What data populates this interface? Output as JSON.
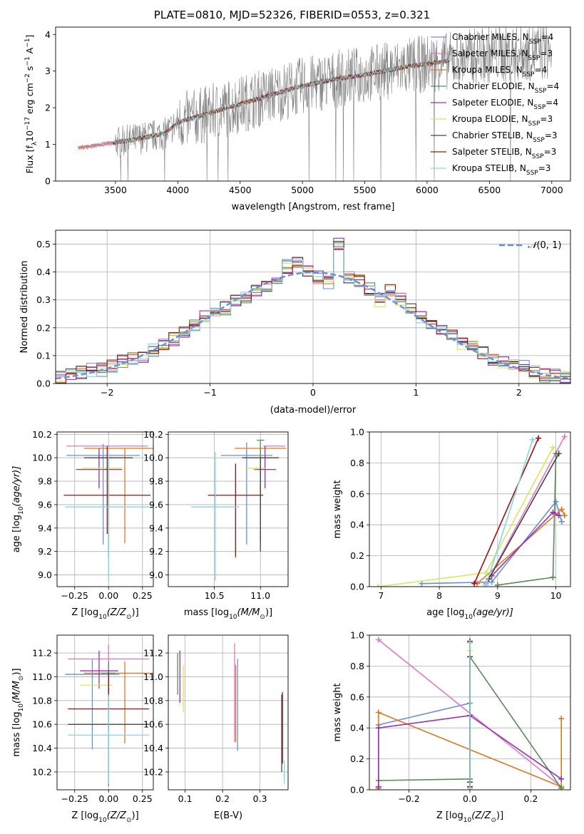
{
  "figure_title": "PLATE=0810, MJD=52326, FIBERID=0553, z=0.321",
  "colors": {
    "Chabrier MILES": "#6a8fdc",
    "Salpeter MILES": "#e377c2",
    "Kroupa MILES": "#e07820",
    "Chabrier ELODIE": "#5a8a5a",
    "Salpeter ELODIE": "#9932b0",
    "Kroupa ELODIE": "#d6e85a",
    "Chabrier STELIB": "#444444",
    "Salpeter STELIB": "#a01010",
    "Kroupa STELIB": "#80d8e0",
    "data": "#808080",
    "gaussian": "#6a8fdc"
  },
  "chart_data": [
    {
      "id": "spectrum",
      "type": "line",
      "xlabel": "wavelength [Angstrom, rest frame]",
      "ylabel_main": "Flux [f",
      "ylabel_sub": "λ",
      "ylabel_rest": "10",
      "ylabel_exp": "−17",
      "ylabel_units": " erg cm",
      "ylabel_units_exp": "−2",
      "ylabel_units2": " s",
      "ylabel_units2_exp": "−1",
      "ylabel_units3": " A",
      "ylabel_units3_exp": "−1",
      "ylabel_end": "]",
      "xlim": [
        3020,
        7150
      ],
      "ylim": [
        0,
        4.2
      ],
      "xticks": [
        "3500",
        "4000",
        "4500",
        "5000",
        "5500",
        "6000",
        "6500",
        "7000"
      ],
      "yticks": [
        "0",
        "1",
        "2",
        "3",
        "4"
      ],
      "legend_placement": "right",
      "legend": [
        {
          "name": "Chabrier MILES",
          "nssp": "4"
        },
        {
          "name": "Salpeter MILES",
          "nssp": "3"
        },
        {
          "name": "Kroupa MILES",
          "nssp": "4"
        },
        {
          "name": "Chabrier ELODIE",
          "nssp": "4"
        },
        {
          "name": "Salpeter ELODIE",
          "nssp": "4"
        },
        {
          "name": "Kroupa ELODIE",
          "nssp": "3"
        },
        {
          "name": "Chabrier STELIB",
          "nssp": "3"
        },
        {
          "name": "Salpeter STELIB",
          "nssp": "3"
        },
        {
          "name": "Kroupa STELIB",
          "nssp": "3"
        }
      ],
      "legend_prefix": "N",
      "legend_sub": "SSP",
      "data_trend": {
        "x": [
          3200,
          3600,
          3900,
          4000,
          4300,
          4500,
          4800,
          5000,
          5300,
          5500,
          5800,
          6000,
          6300,
          6500,
          6800,
          7000
        ],
        "y": [
          0.9,
          1.1,
          1.3,
          1.6,
          1.9,
          2.1,
          2.4,
          2.6,
          2.8,
          2.9,
          3.1,
          3.2,
          3.35,
          3.45,
          3.5,
          3.55
        ]
      }
    },
    {
      "id": "residuals",
      "type": "line",
      "xlabel": "(data-model)/error",
      "ylabel": "Normed distribution",
      "xlim": [
        -2.5,
        2.5
      ],
      "ylim": [
        0,
        0.55
      ],
      "xticks": [
        -2,
        -1,
        0,
        1,
        2
      ],
      "xtick_labels": [
        "−2",
        "−1",
        "0",
        "1",
        "2"
      ],
      "yticks": [
        "0.0",
        "0.1",
        "0.2",
        "0.3",
        "0.4",
        "0.5"
      ],
      "legend_label_pre": "𝒩",
      "legend_label_post": "(0, 1)",
      "legend_placement": "top-right",
      "bins": [
        -2.5,
        -2.4,
        -2.3,
        -2.2,
        -2.1,
        -2.0,
        -1.9,
        -1.8,
        -1.7,
        -1.6,
        -1.5,
        -1.4,
        -1.3,
        -1.2,
        -1.1,
        -1.0,
        -0.9,
        -0.8,
        -0.7,
        -0.6,
        -0.5,
        -0.4,
        -0.3,
        -0.2,
        -0.1,
        0.0,
        0.1,
        0.2,
        0.3,
        0.4,
        0.5,
        0.6,
        0.7,
        0.8,
        0.9,
        1.0,
        1.1,
        1.2,
        1.3,
        1.4,
        1.5,
        1.6,
        1.7,
        1.8,
        1.9,
        2.0,
        2.1,
        2.2,
        2.3,
        2.4,
        2.5
      ],
      "hist_base": [
        0.02,
        0.03,
        0.04,
        0.05,
        0.05,
        0.06,
        0.08,
        0.09,
        0.1,
        0.12,
        0.14,
        0.16,
        0.19,
        0.21,
        0.24,
        0.25,
        0.27,
        0.3,
        0.31,
        0.33,
        0.35,
        0.38,
        0.42,
        0.43,
        0.4,
        0.38,
        0.36,
        0.5,
        0.38,
        0.37,
        0.34,
        0.3,
        0.33,
        0.3,
        0.27,
        0.24,
        0.22,
        0.19,
        0.17,
        0.14,
        0.13,
        0.11,
        0.09,
        0.08,
        0.07,
        0.06,
        0.04,
        0.03,
        0.03,
        0.02
      ]
    },
    {
      "id": "age-vs-Z",
      "type": "scatter",
      "xlabel_pre": "Z [log",
      "xlabel_sub": "10",
      "xlabel_post": "(Z/Z",
      "xlabel_sun": "⊙",
      "xlabel_end": ")]",
      "ylabel_pre": "age  [log",
      "ylabel_sub": "10",
      "ylabel_post": "(age/yr)]",
      "xlim": [
        -0.38,
        0.33
      ],
      "ylim": [
        8.9,
        10.22
      ],
      "xticks": [
        -0.25,
        0,
        0.25
      ],
      "xtick_labels": [
        "−0.25",
        "0.00",
        "0.25"
      ],
      "yticks": [
        9.0,
        9.2,
        9.4,
        9.6,
        9.8,
        10.0,
        10.2
      ],
      "ytick_labels": [
        "9.0",
        "9.2",
        "9.4",
        "9.6",
        "9.8",
        "10.0",
        "10.2"
      ],
      "points": [
        {
          "series": "Chabrier MILES",
          "x": -0.04,
          "y": 10.02,
          "xerr": 0.27,
          "ylo": 9.26,
          "yhi": 10.12
        },
        {
          "series": "Salpeter MILES",
          "x": -0.01,
          "y": 10.1,
          "xerr": 0.3,
          "ylo": 10.1,
          "yhi": 10.1
        },
        {
          "series": "Kroupa MILES",
          "x": 0.12,
          "y": 10.08,
          "xerr": 0.3,
          "ylo": 9.27,
          "yhi": 10.08
        },
        {
          "series": "Chabrier ELODIE",
          "x": 0.0,
          "y": 10.0,
          "xerr": 0.03,
          "ylo": 9.16,
          "yhi": 10.0
        },
        {
          "series": "Salpeter ELODIE",
          "x": -0.07,
          "y": 9.9,
          "xerr": 0.17,
          "ylo": 9.74,
          "yhi": 10.08
        },
        {
          "series": "Kroupa ELODIE",
          "x": -0.05,
          "y": 9.91,
          "xerr": 0.15,
          "ylo": 9.9,
          "yhi": 9.92
        },
        {
          "series": "Chabrier STELIB",
          "x": 0.0,
          "y": 10.0,
          "xerr": 0.18,
          "ylo": 9.15,
          "yhi": 10.0
        },
        {
          "series": "Salpeter STELIB",
          "x": -0.01,
          "y": 9.68,
          "xerr": 0.32,
          "ylo": 9.35,
          "yhi": 10.1
        },
        {
          "series": "Kroupa STELIB",
          "x": 0.0,
          "y": 9.58,
          "xerr": 0.32,
          "ylo": 8.95,
          "yhi": 10.05
        }
      ]
    },
    {
      "id": "age-vs-mass",
      "type": "scatter",
      "xlabel_pre": "mass [log",
      "xlabel_sub": "10",
      "xlabel_post": "(M/M",
      "xlabel_sun": "⊙",
      "xlabel_end": ")]",
      "xlim": [
        10.0,
        11.3
      ],
      "ylim": [
        8.9,
        10.22
      ],
      "xticks": [
        10.5,
        11.0
      ],
      "xtick_labels": [
        "10.5",
        "11.0"
      ],
      "yticks": [
        9.0,
        9.2,
        9.4,
        9.6,
        9.8,
        10.0,
        10.2
      ],
      "ytick_labels": [
        "9.0",
        "9.2",
        "9.4",
        "9.6",
        "9.8",
        "10.0",
        "10.2"
      ],
      "points": [
        {
          "series": "Chabrier MILES",
          "x": 10.85,
          "y": 10.02,
          "xerr": 0.28,
          "ylo": 9.26,
          "yhi": 10.13
        },
        {
          "series": "Salpeter MILES",
          "x": 11.15,
          "y": 10.1,
          "xerr": 0.12,
          "ylo": 10.1,
          "yhi": 10.1
        },
        {
          "series": "Kroupa MILES",
          "x": 11.0,
          "y": 10.08,
          "xerr": 0.28,
          "ylo": 9.27,
          "yhi": 10.08
        },
        {
          "series": "Chabrier ELODIE",
          "x": 11.0,
          "y": 10.15,
          "xerr": 0.04,
          "ylo": 9.3,
          "yhi": 10.15
        },
        {
          "series": "Salpeter ELODIE",
          "x": 11.05,
          "y": 9.9,
          "xerr": 0.12,
          "ylo": 9.74,
          "yhi": 10.1
        },
        {
          "series": "Kroupa ELODIE",
          "x": 10.95,
          "y": 9.91,
          "xerr": 0.1,
          "ylo": 9.9,
          "yhi": 9.92
        },
        {
          "series": "Chabrier STELIB",
          "x": 11.0,
          "y": 10.0,
          "xerr": 0.2,
          "ylo": 9.2,
          "yhi": 10.0
        },
        {
          "series": "Salpeter STELIB",
          "x": 10.73,
          "y": 9.68,
          "xerr": 0.3,
          "ylo": 9.15,
          "yhi": 9.95
        },
        {
          "series": "Kroupa STELIB",
          "x": 10.51,
          "y": 9.58,
          "xerr": 0.26,
          "ylo": 8.95,
          "yhi": 10.05
        }
      ]
    },
    {
      "id": "weight-vs-age",
      "type": "line",
      "xlabel_pre": "age  [log",
      "xlabel_sub": "10",
      "xlabel_post": "(age/yr)]",
      "ylabel": "mass weight",
      "xlim": [
        6.8,
        10.25
      ],
      "ylim": [
        0,
        1.0
      ],
      "xticks": [
        7,
        8,
        9,
        10
      ],
      "xtick_labels": [
        "7",
        "8",
        "9",
        "10"
      ],
      "yticks": [
        0,
        0.2,
        0.4,
        0.6,
        0.8,
        1.0
      ],
      "ytick_labels": [
        "0.0",
        "0.2",
        "0.4",
        "0.6",
        "0.8",
        "1.0"
      ],
      "series": [
        {
          "name": "Chabrier MILES",
          "x": [
            7.7,
            8.9,
            10.0,
            10.1
          ],
          "y": [
            0.02,
            0.03,
            0.55,
            0.42
          ]
        },
        {
          "name": "Salpeter MILES",
          "x": [
            8.8,
            10.15
          ],
          "y": [
            0.02,
            0.97
          ]
        },
        {
          "name": "Kroupa MILES",
          "x": [
            8.65,
            10.1,
            10.15
          ],
          "y": [
            0.02,
            0.5,
            0.46
          ]
        },
        {
          "name": "Chabrier ELODIE",
          "x": [
            9.0,
            9.95,
            10.0
          ],
          "y": [
            0.01,
            0.06,
            0.86
          ]
        },
        {
          "name": "Salpeter ELODIE",
          "x": [
            8.9,
            9.95,
            10.05
          ],
          "y": [
            0.07,
            0.48,
            0.46
          ]
        },
        {
          "name": "Kroupa ELODIE",
          "x": [
            6.95,
            8.8,
            9.95
          ],
          "y": [
            0.0,
            0.09,
            0.9
          ]
        },
        {
          "name": "Chabrier STELIB",
          "x": [
            8.85,
            10.05
          ],
          "y": [
            0.05,
            0.86
          ]
        },
        {
          "name": "Salpeter STELIB",
          "x": [
            8.6,
            9.7
          ],
          "y": [
            0.02,
            0.96
          ]
        },
        {
          "name": "Kroupa STELIB",
          "x": [
            8.8,
            9.6
          ],
          "y": [
            0.01,
            0.95
          ]
        }
      ]
    },
    {
      "id": "mass-vs-Z",
      "type": "scatter",
      "xlabel_pre": "Z [log",
      "xlabel_sub": "10",
      "xlabel_post": "(Z/Z",
      "xlabel_sun": "⊙",
      "xlabel_end": ")]",
      "ylabel_pre": "mass [log",
      "ylabel_sub": "10",
      "ylabel_post": "(M/M",
      "ylabel_sun": "⊙",
      "ylabel_end": ")]",
      "xlim": [
        -0.38,
        0.33
      ],
      "ylim": [
        10.05,
        11.35
      ],
      "xticks": [
        -0.25,
        0,
        0.25
      ],
      "xtick_labels": [
        "−0.25",
        "0.00",
        "0.25"
      ],
      "yticks": [
        10.2,
        10.4,
        10.6,
        10.8,
        11.0,
        11.2
      ],
      "ytick_labels": [
        "10.2",
        "10.4",
        "10.6",
        "10.8",
        "11.0",
        "11.2"
      ],
      "points": [
        {
          "series": "Chabrier MILES",
          "x": -0.12,
          "y": 11.02,
          "xerr": 0.2,
          "ylo": 10.39,
          "yhi": 11.15
        },
        {
          "series": "Salpeter MILES",
          "x": 0.0,
          "y": 11.15,
          "xerr": 0.3,
          "ylo": 10.86,
          "yhi": 11.27
        },
        {
          "series": "Kroupa MILES",
          "x": 0.12,
          "y": 11.03,
          "xerr": 0.3,
          "ylo": 10.44,
          "yhi": 11.13
        },
        {
          "series": "Chabrier ELODIE",
          "x": 0.0,
          "y": 11.03,
          "xerr": 0.05,
          "ylo": 10.08,
          "yhi": 11.13
        },
        {
          "series": "Salpeter ELODIE",
          "x": -0.07,
          "y": 11.05,
          "xerr": 0.14,
          "ylo": 10.9,
          "yhi": 11.22
        },
        {
          "series": "Kroupa ELODIE",
          "x": -0.09,
          "y": 10.93,
          "xerr": 0.12,
          "ylo": 10.93,
          "yhi": 10.93
        },
        {
          "series": "Chabrier STELIB",
          "x": 0.0,
          "y": 10.6,
          "xerr": 0.3,
          "ylo": 10.15,
          "yhi": 11.05
        },
        {
          "series": "Salpeter STELIB",
          "x": 0.0,
          "y": 10.73,
          "xerr": 0.3,
          "ylo": 10.82,
          "yhi": 11.03
        },
        {
          "series": "Kroupa STELIB",
          "x": 0.0,
          "y": 10.51,
          "xerr": 0.3,
          "ylo": 10.1,
          "yhi": 10.85
        }
      ]
    },
    {
      "id": "mass-vs-ebv",
      "type": "scatter",
      "xlabel": "E(B-V)",
      "xlim": [
        0.055,
        0.375
      ],
      "ylim": [
        10.05,
        11.35
      ],
      "xticks": [
        0.1,
        0.2,
        0.3
      ],
      "xtick_labels": [
        "0.1",
        "0.2",
        "0.3"
      ],
      "yticks": [
        10.2,
        10.4,
        10.6,
        10.8,
        11.0,
        11.2
      ],
      "ytick_labels": [
        "10.2",
        "10.4",
        "10.6",
        "10.8",
        "11.0",
        "11.2"
      ],
      "points": [
        {
          "series": "Salpeter ELODIE",
          "x": 0.086,
          "ylo": 10.78,
          "yhi": 11.22
        },
        {
          "series": "Kroupa ELODIE",
          "x": 0.095,
          "ylo": 10.7,
          "yhi": 11.1
        },
        {
          "series": "Chabrier ELODIE",
          "x": 0.08,
          "ylo": 10.85,
          "yhi": 11.2
        },
        {
          "series": "Salpeter MILES",
          "x": 0.232,
          "ylo": 10.45,
          "yhi": 11.28
        },
        {
          "series": "Kroupa MILES",
          "x": 0.235,
          "ylo": 10.45,
          "yhi": 11.1
        },
        {
          "series": "Chabrier MILES",
          "x": 0.24,
          "ylo": 10.38,
          "yhi": 11.15
        },
        {
          "series": "Salpeter STELIB",
          "x": 0.36,
          "ylo": 10.27,
          "yhi": 10.87
        },
        {
          "series": "Chabrier STELIB",
          "x": 0.358,
          "ylo": 10.2,
          "yhi": 10.85
        },
        {
          "series": "Kroupa STELIB",
          "x": 0.365,
          "ylo": 10.1,
          "yhi": 10.3
        }
      ]
    },
    {
      "id": "weight-vs-Z",
      "type": "line",
      "xlabel_pre": "Z [log",
      "xlabel_sub": "10",
      "xlabel_post": "(Z/Z",
      "xlabel_sun": "⊙",
      "xlabel_end": ")]",
      "ylabel": "mass weight",
      "xlim": [
        -0.33,
        0.33
      ],
      "ylim": [
        0,
        1.0
      ],
      "xticks": [
        -0.2,
        0,
        0.2
      ],
      "xtick_labels": [
        "−0.2",
        "0.0",
        "0.2"
      ],
      "yticks": [
        0,
        0.2,
        0.4,
        0.6,
        0.8,
        1.0
      ],
      "ytick_labels": [
        "0.0",
        "0.2",
        "0.4",
        "0.6",
        "0.8",
        "1.0"
      ],
      "series": [
        {
          "name": "Chabrier MILES",
          "x": [
            -0.3,
            0.0,
            0.0
          ],
          "y": [
            0.42,
            0.56,
            0.02
          ]
        },
        {
          "name": "Salpeter MILES",
          "x": [
            -0.3,
            0.3
          ],
          "y": [
            0.97,
            0.02
          ]
        },
        {
          "name": "Kroupa MILES",
          "x": [
            -0.3,
            -0.3,
            0.3,
            0.3
          ],
          "y": [
            0.01,
            0.5,
            0.02,
            0.46
          ]
        },
        {
          "name": "Chabrier ELODIE",
          "x": [
            -0.3,
            0.0,
            0.0,
            0.3
          ],
          "y": [
            0.06,
            0.07,
            0.86,
            0.01
          ]
        },
        {
          "name": "Salpeter ELODIE",
          "x": [
            -0.3,
            -0.3,
            0.0,
            0.3
          ],
          "y": [
            0.02,
            0.4,
            0.48,
            0.07
          ]
        },
        {
          "name": "Kroupa ELODIE",
          "x": [
            0.0,
            0.0
          ],
          "y": [
            0.0,
            0.9
          ]
        },
        {
          "name": "Chabrier STELIB",
          "x": [
            0.0,
            0.0
          ],
          "y": [
            0.05,
            0.86
          ]
        },
        {
          "name": "Salpeter STELIB",
          "x": [
            0.0,
            0.0
          ],
          "y": [
            0.02,
            0.96
          ]
        },
        {
          "name": "Kroupa STELIB",
          "x": [
            0.0,
            0.0
          ],
          "y": [
            0.01,
            0.95
          ]
        }
      ]
    }
  ]
}
